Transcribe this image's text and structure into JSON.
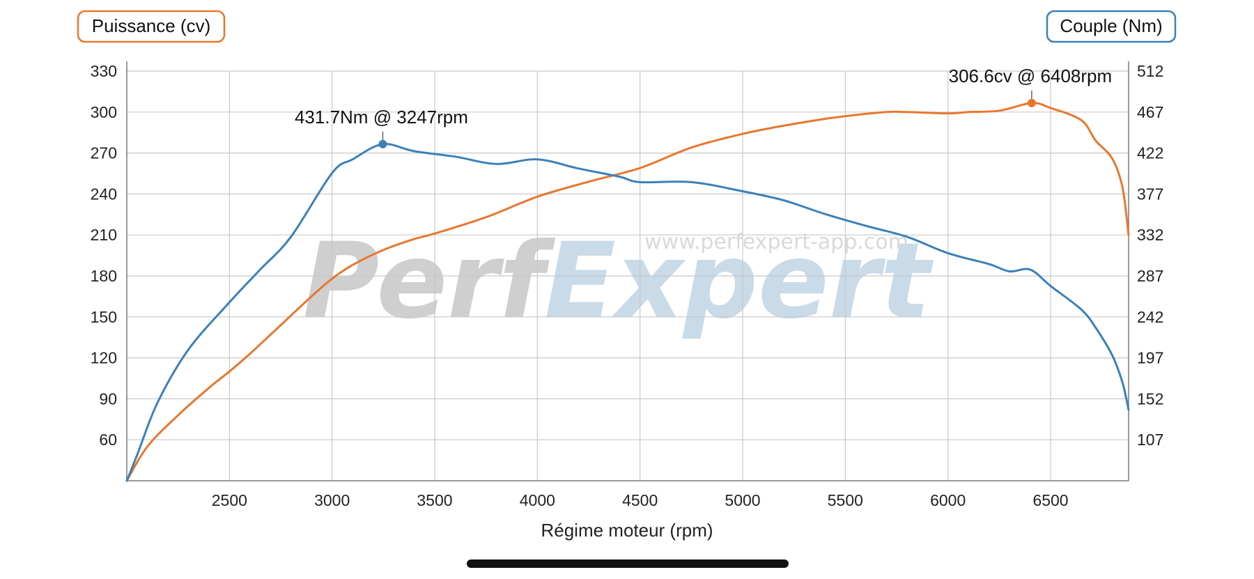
{
  "chart_data": {
    "type": "line",
    "xlabel": "Régime moteur (rpm)",
    "xlim": [
      2000,
      6880
    ],
    "x_ticks": [
      "2500",
      "3000",
      "3500",
      "4000",
      "4500",
      "5000",
      "5500",
      "6000",
      "6500"
    ],
    "y_left": {
      "label": "Puissance (cv)",
      "ylim": [
        30,
        330
      ],
      "ticks": [
        "60",
        "90",
        "120",
        "150",
        "180",
        "210",
        "240",
        "270",
        "300",
        "330"
      ]
    },
    "y_right": {
      "label": "Couple (Nm)",
      "ylim": [
        62,
        512
      ],
      "ticks": [
        "107",
        "152",
        "197",
        "242",
        "287",
        "332",
        "377",
        "422",
        "467",
        "512"
      ]
    },
    "grid": true,
    "series": [
      {
        "name": "Puissance (cv)",
        "axis": "left",
        "color": "#e8772e",
        "x": [
          2000,
          2100,
          2250,
          2400,
          2500,
          2600,
          2750,
          2900,
          3000,
          3100,
          3250,
          3400,
          3500,
          3750,
          4000,
          4250,
          4500,
          4750,
          5000,
          5200,
          5400,
          5500,
          5700,
          5800,
          6000,
          6100,
          6250,
          6408,
          6500,
          6650,
          6720,
          6800,
          6850,
          6880
        ],
        "values": [
          30,
          55,
          78,
          98,
          110,
          123,
          144,
          165,
          178,
          188,
          199,
          207,
          211,
          223,
          238,
          249,
          259,
          274,
          284,
          290,
          295,
          297,
          300,
          300,
          299,
          300,
          301,
          306.6,
          303,
          294,
          279,
          266,
          245,
          210
        ]
      },
      {
        "name": "Couple (Nm)",
        "axis": "right",
        "color": "#3b80b8",
        "x": [
          2000,
          2050,
          2150,
          2300,
          2500,
          2650,
          2800,
          3000,
          3100,
          3247,
          3400,
          3600,
          3800,
          4000,
          4200,
          4400,
          4500,
          4750,
          5000,
          5200,
          5400,
          5600,
          5800,
          6000,
          6200,
          6300,
          6400,
          6500,
          6650,
          6720,
          6800,
          6850,
          6880
        ],
        "values": [
          62,
          90,
          148,
          206,
          258,
          294,
          330,
          400,
          415,
          431.7,
          424,
          418,
          410,
          415,
          405,
          396,
          390,
          390,
          380,
          370,
          355,
          342,
          330,
          312,
          300,
          292,
          294,
          276,
          250,
          230,
          200,
          170,
          140
        ]
      }
    ],
    "annotations": [
      {
        "text": "431.7Nm @ 3247rpm",
        "x": 3247,
        "value": 431.7,
        "axis": "right",
        "color": "#3b80b8"
      },
      {
        "text": "306.6cv @ 6408rpm",
        "x": 6408,
        "value": 306.6,
        "axis": "left",
        "color": "#e8772e"
      }
    ],
    "watermark": {
      "url": "www.perfexpert-app.com",
      "brand": "PerfExpert"
    }
  }
}
